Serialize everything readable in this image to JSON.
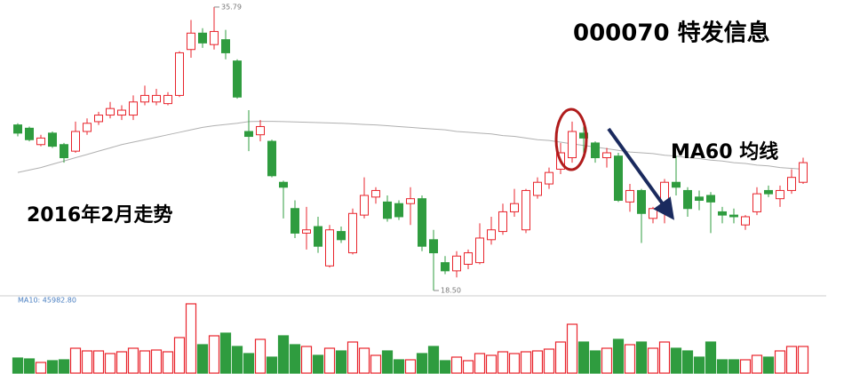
{
  "chart_data": [
    {
      "type": "candlestick",
      "title": "000070  特发信息",
      "subtitle": "2016年2月走势",
      "up_color": "#e8242c",
      "down_color": "#2f9c3f",
      "ylim": [
        18.23,
        36.22
      ],
      "open": [
        28.6,
        28.4,
        27.4,
        28.1,
        27.4,
        27.0,
        28.2,
        28.8,
        29.2,
        29.2,
        29.2,
        30.0,
        30.0,
        29.9,
        30.4,
        33.2,
        34.2,
        33.5,
        33.8,
        32.5,
        28.2,
        28.0,
        27.6,
        25.1,
        23.5,
        22.0,
        22.4,
        20.0,
        22.1,
        20.8,
        23.1,
        24.2,
        23.9,
        23.8,
        23.8,
        24.1,
        21.6,
        20.2,
        19.7,
        20.1,
        20.2,
        21.6,
        22.1,
        23.3,
        22.2,
        24.3,
        25.0,
        25.9,
        26.6,
        28.1,
        27.5,
        26.6,
        26.7,
        23.9,
        24.6,
        22.9,
        23.3,
        25.1,
        24.6,
        24.2,
        24.3,
        23.3,
        23.1,
        22.5,
        23.3,
        24.6,
        24.1,
        24.6,
        25.1
      ],
      "high": [
        28.7,
        28.5,
        28.0,
        28.2,
        27.5,
        28.8,
        29.0,
        29.4,
        30.0,
        29.8,
        30.4,
        31.0,
        30.8,
        30.6,
        33.1,
        35.0,
        34.5,
        35.79,
        34.4,
        32.6,
        29.5,
        28.9,
        27.7,
        25.2,
        24.0,
        23.6,
        23.0,
        22.5,
        22.4,
        23.5,
        25.4,
        24.8,
        24.3,
        24.0,
        24.8,
        24.3,
        22.2,
        20.6,
        20.9,
        21.0,
        22.6,
        23.0,
        23.8,
        24.7,
        24.7,
        25.4,
        26.0,
        27.5,
        28.8,
        28.5,
        27.6,
        27.2,
        26.9,
        25.0,
        24.7,
        23.6,
        25.3,
        26.7,
        24.8,
        24.6,
        24.5,
        23.6,
        23.5,
        23.1,
        24.8,
        24.9,
        24.9,
        25.9,
        26.6
      ],
      "low": [
        27.9,
        27.6,
        27.3,
        27.2,
        26.3,
        26.9,
        28.0,
        28.6,
        29.0,
        28.9,
        28.9,
        29.8,
        29.8,
        29.8,
        30.3,
        32.7,
        33.3,
        33.2,
        32.6,
        30.2,
        27.0,
        27.6,
        25.4,
        22.9,
        21.7,
        21.0,
        20.8,
        19.9,
        21.4,
        20.7,
        22.9,
        23.8,
        22.7,
        22.8,
        22.5,
        20.9,
        18.5,
        19.5,
        19.3,
        19.8,
        20.1,
        21.3,
        21.9,
        23.0,
        22.0,
        24.1,
        24.7,
        25.6,
        26.3,
        26.9,
        26.3,
        26.0,
        23.9,
        23.3,
        21.4,
        22.6,
        22.6,
        24.3,
        23.0,
        23.4,
        22.0,
        22.6,
        22.6,
        22.2,
        23.1,
        24.2,
        23.6,
        24.4,
        25.0
      ],
      "close": [
        28.1,
        27.7,
        27.8,
        27.3,
        26.6,
        28.2,
        28.7,
        29.2,
        29.6,
        29.5,
        30.0,
        30.4,
        30.4,
        30.4,
        33.0,
        34.2,
        33.6,
        34.3,
        33.0,
        30.3,
        27.9,
        28.5,
        25.5,
        24.8,
        22.0,
        22.2,
        21.2,
        22.2,
        21.6,
        23.2,
        24.3,
        24.6,
        22.9,
        23.0,
        24.1,
        21.2,
        20.8,
        19.7,
        20.6,
        20.8,
        21.7,
        22.2,
        23.3,
        23.8,
        24.6,
        25.1,
        25.7,
        26.9,
        28.2,
        27.8,
        26.6,
        26.9,
        24.0,
        24.6,
        23.2,
        23.5,
        25.1,
        24.8,
        23.5,
        24.0,
        23.9,
        23.1,
        23.0,
        23.0,
        24.4,
        24.4,
        24.6,
        25.4,
        26.3
      ],
      "extreme_labels": [
        {
          "label": "35.79",
          "value": 35.79
        },
        {
          "label": "18.50",
          "value": 18.5
        }
      ],
      "series": [
        {
          "name": "MA60 均线",
          "color": "#b0b0b0",
          "values": [
            25.7,
            25.85,
            26.0,
            26.2,
            26.4,
            26.6,
            26.8,
            27.0,
            27.2,
            27.4,
            27.55,
            27.7,
            27.85,
            28.0,
            28.15,
            28.3,
            28.45,
            28.55,
            28.63,
            28.7,
            28.8,
            28.82,
            28.82,
            28.8,
            28.78,
            28.76,
            28.74,
            28.72,
            28.7,
            28.67,
            28.63,
            28.6,
            28.55,
            28.5,
            28.45,
            28.4,
            28.35,
            28.3,
            28.2,
            28.15,
            28.1,
            28.05,
            27.95,
            27.9,
            27.8,
            27.7,
            27.65,
            27.55,
            27.45,
            27.35,
            27.25,
            27.15,
            27.05,
            26.95,
            26.9,
            26.85,
            26.75,
            26.7,
            26.6,
            26.55,
            26.45,
            26.4,
            26.3,
            26.25,
            26.15,
            26.1,
            26.0,
            25.95,
            25.9
          ]
        }
      ]
    },
    {
      "type": "bar",
      "label": "MA10: 45982.80",
      "ylim": [
        0,
        144000
      ],
      "values": [
        30600,
        28800,
        21600,
        25200,
        27000,
        50400,
        45000,
        45000,
        39600,
        43200,
        50400,
        45000,
        46800,
        43200,
        72000,
        140400,
        57600,
        75600,
        81000,
        54000,
        39600,
        68400,
        32400,
        75600,
        57600,
        54000,
        36000,
        50400,
        45000,
        63000,
        50400,
        36000,
        45000,
        27000,
        27000,
        39600,
        54000,
        25200,
        32400,
        25200,
        39600,
        36000,
        43200,
        39600,
        43200,
        45000,
        48600,
        63000,
        99000,
        63000,
        45000,
        50400,
        68400,
        57600,
        63000,
        50400,
        63000,
        50400,
        45000,
        32400,
        63000,
        27000,
        27000,
        27000,
        36000,
        32400,
        45000,
        54000,
        54000
      ]
    }
  ]
}
